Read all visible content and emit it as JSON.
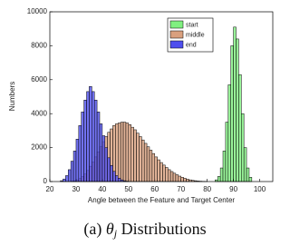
{
  "chart_data": {
    "type": "histogram",
    "xlabel": "Angle between the Feature and Target Center",
    "ylabel": "Numbers",
    "xlim": [
      20,
      105
    ],
    "xticks": [
      20,
      30,
      40,
      50,
      60,
      70,
      80,
      90,
      100
    ],
    "ylim": [
      0,
      10000
    ],
    "yticks": [
      0,
      2000,
      4000,
      6000,
      8000,
      10000
    ],
    "legend": "upper-right",
    "series": [
      {
        "name": "start",
        "color": "#80f080",
        "bins": [
          83,
          84,
          85,
          86,
          87,
          88,
          89,
          90,
          91,
          92,
          93,
          94,
          95,
          96,
          97
        ],
        "values": [
          100,
          300,
          800,
          1800,
          3500,
          5700,
          8000,
          9100,
          8400,
          6300,
          4000,
          2000,
          800,
          250
        ]
      },
      {
        "name": "middle",
        "color": "#d9a07e",
        "bins": [
          28,
          29,
          30,
          31,
          32,
          33,
          34,
          35,
          36,
          37,
          38,
          39,
          40,
          41,
          42,
          43,
          44,
          45,
          46,
          47,
          48,
          49,
          50,
          51,
          52,
          53,
          54,
          55,
          56,
          57,
          58,
          59,
          60,
          61,
          62,
          63,
          64,
          65,
          66,
          67,
          68,
          69,
          70,
          71,
          72,
          73,
          74,
          75,
          76,
          77,
          78,
          79,
          80
        ],
        "values": [
          20,
          50,
          100,
          180,
          300,
          450,
          650,
          900,
          1150,
          1450,
          1750,
          2050,
          2350,
          2650,
          2900,
          3100,
          3300,
          3400,
          3450,
          3500,
          3500,
          3450,
          3350,
          3200,
          3050,
          2850,
          2650,
          2450,
          2250,
          2050,
          1850,
          1650,
          1450,
          1280,
          1120,
          970,
          830,
          700,
          590,
          490,
          400,
          320,
          250,
          190,
          140,
          100,
          70,
          50,
          30,
          20,
          10,
          5
        ]
      },
      {
        "name": "end",
        "color": "#4f4fee",
        "bins": [
          24,
          25,
          26,
          27,
          28,
          29,
          30,
          31,
          32,
          33,
          34,
          35,
          36,
          37,
          38,
          39,
          40,
          41,
          42,
          43,
          44,
          45,
          46,
          47,
          48,
          49,
          50
        ],
        "values": [
          50,
          150,
          350,
          700,
          1200,
          1800,
          2500,
          3300,
          4100,
          4800,
          5300,
          5600,
          5300,
          4800,
          4100,
          3400,
          2700,
          2000,
          1400,
          950,
          600,
          350,
          200,
          100,
          50,
          20
        ]
      }
    ]
  },
  "caption": {
    "label": "(a)",
    "symbol": "θ",
    "subscript": "j",
    "text": "Distributions"
  }
}
